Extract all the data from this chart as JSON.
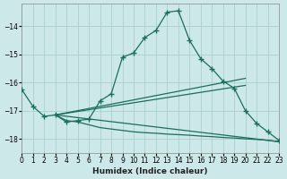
{
  "xlabel": "Humidex (Indice chaleur)",
  "bg_color": "#cce8e8",
  "grid_color": "#aacfcf",
  "line_color": "#1a6e60",
  "xlim": [
    0,
    23
  ],
  "ylim": [
    -18.5,
    -13.2
  ],
  "yticks": [
    -18,
    -17,
    -16,
    -15,
    -14
  ],
  "xticks": [
    0,
    1,
    2,
    3,
    4,
    5,
    6,
    7,
    8,
    9,
    10,
    11,
    12,
    13,
    14,
    15,
    16,
    17,
    18,
    19,
    20,
    21,
    22,
    23
  ],
  "line1_x": [
    0,
    1,
    2,
    3,
    4,
    5,
    6,
    7,
    8,
    9,
    10,
    11,
    12,
    13,
    14,
    15,
    16,
    17,
    18,
    19,
    20,
    21,
    22,
    23
  ],
  "line1_y": [
    -16.25,
    -16.85,
    -17.2,
    -17.15,
    -17.4,
    -17.35,
    -17.3,
    -16.65,
    -16.4,
    -15.1,
    -14.95,
    -14.4,
    -14.15,
    -13.5,
    -13.45,
    -14.5,
    -15.15,
    -15.5,
    -15.95,
    -16.2,
    -17.0,
    -17.45,
    -17.75,
    -18.05
  ],
  "line2_x": [
    3,
    20
  ],
  "line2_y": [
    -17.15,
    -15.85
  ],
  "line3_x": [
    3,
    20
  ],
  "line3_y": [
    -17.15,
    -16.1
  ],
  "line4_x": [
    3,
    23
  ],
  "line4_y": [
    -17.15,
    -18.1
  ],
  "line5_x": [
    3,
    4,
    5,
    6,
    7,
    8,
    9,
    10,
    11,
    12,
    13,
    14,
    15,
    16,
    17,
    18,
    19,
    20,
    21,
    22,
    23
  ],
  "line5_y": [
    -17.15,
    -17.35,
    -17.4,
    -17.5,
    -17.6,
    -17.65,
    -17.7,
    -17.75,
    -17.78,
    -17.8,
    -17.83,
    -17.85,
    -17.87,
    -17.9,
    -17.92,
    -17.95,
    -17.97,
    -18.0,
    -18.02,
    -18.05,
    -18.1
  ]
}
